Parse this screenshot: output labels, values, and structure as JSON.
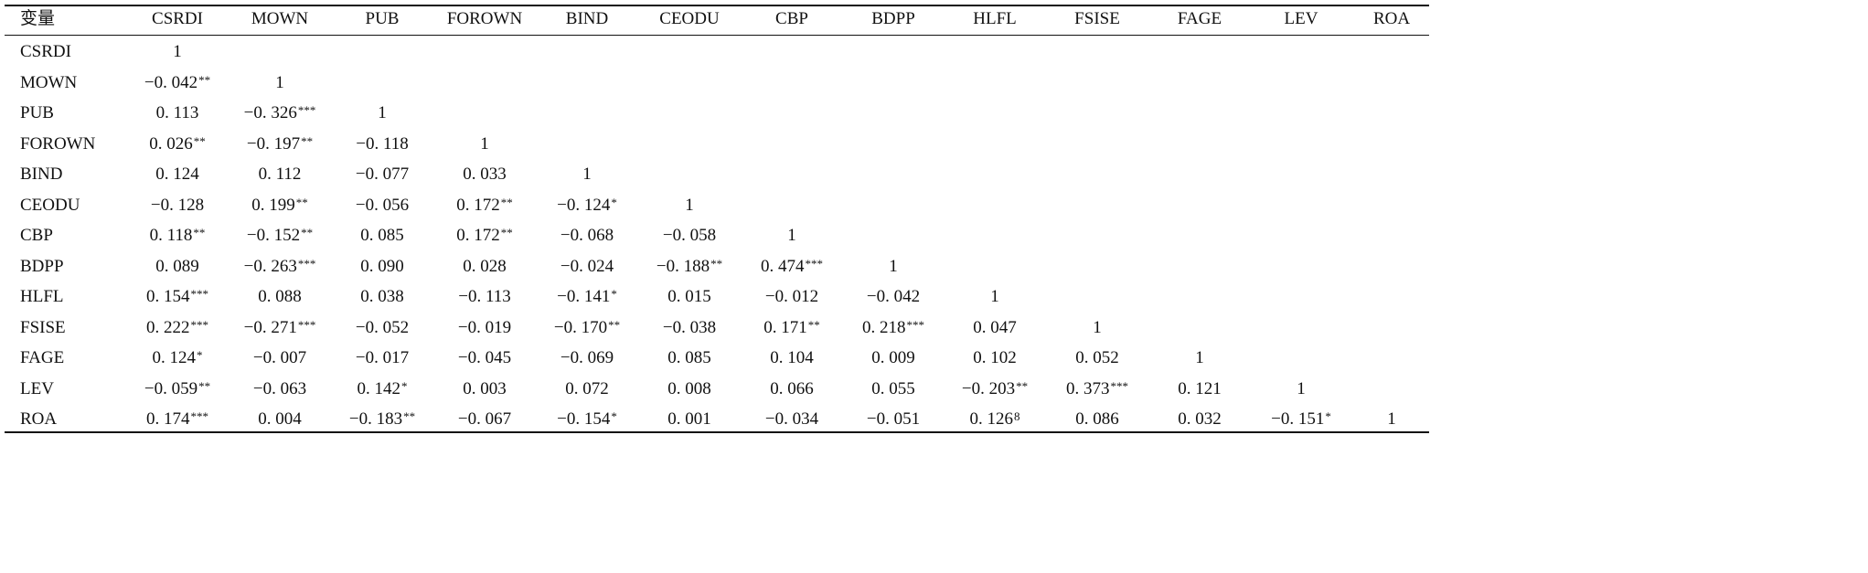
{
  "table": {
    "corner_label": "变量",
    "columns": [
      "CSRDI",
      "MOWN",
      "PUB",
      "FOROWN",
      "BIND",
      "CEODU",
      "CBP",
      "BDPP",
      "HLFL",
      "FSISE",
      "FAGE",
      "LEV",
      "ROA"
    ],
    "rows": [
      {
        "label": "CSRDI",
        "cells": [
          {
            "v": "1",
            "s": ""
          }
        ]
      },
      {
        "label": "MOWN",
        "cells": [
          {
            "v": "−0. 042",
            "s": "**"
          },
          {
            "v": "1",
            "s": ""
          }
        ]
      },
      {
        "label": "PUB",
        "cells": [
          {
            "v": "0. 113",
            "s": ""
          },
          {
            "v": "−0. 326",
            "s": "***"
          },
          {
            "v": "1",
            "s": ""
          }
        ]
      },
      {
        "label": "FOROWN",
        "cells": [
          {
            "v": "0. 026",
            "s": "**"
          },
          {
            "v": "−0. 197",
            "s": "**"
          },
          {
            "v": "−0. 118",
            "s": ""
          },
          {
            "v": "1",
            "s": ""
          }
        ]
      },
      {
        "label": "BIND",
        "cells": [
          {
            "v": "0. 124",
            "s": ""
          },
          {
            "v": "0. 112",
            "s": ""
          },
          {
            "v": "−0. 077",
            "s": ""
          },
          {
            "v": "0. 033",
            "s": ""
          },
          {
            "v": "1",
            "s": ""
          }
        ]
      },
      {
        "label": "CEODU",
        "cells": [
          {
            "v": "−0. 128",
            "s": ""
          },
          {
            "v": "0. 199",
            "s": "**"
          },
          {
            "v": "−0. 056",
            "s": ""
          },
          {
            "v": "0. 172",
            "s": "**"
          },
          {
            "v": "−0. 124",
            "s": "*"
          },
          {
            "v": "1",
            "s": ""
          }
        ]
      },
      {
        "label": "CBP",
        "cells": [
          {
            "v": "0. 118",
            "s": "**"
          },
          {
            "v": "−0. 152",
            "s": "**"
          },
          {
            "v": "0. 085",
            "s": ""
          },
          {
            "v": "0. 172",
            "s": "**"
          },
          {
            "v": "−0. 068",
            "s": ""
          },
          {
            "v": "−0. 058",
            "s": ""
          },
          {
            "v": "1",
            "s": ""
          }
        ]
      },
      {
        "label": "BDPP",
        "cells": [
          {
            "v": "0. 089",
            "s": ""
          },
          {
            "v": "−0. 263",
            "s": "***"
          },
          {
            "v": "0. 090",
            "s": ""
          },
          {
            "v": "0. 028",
            "s": ""
          },
          {
            "v": "−0. 024",
            "s": ""
          },
          {
            "v": "−0. 188",
            "s": "**"
          },
          {
            "v": "0. 474",
            "s": "***"
          },
          {
            "v": "1",
            "s": ""
          }
        ]
      },
      {
        "label": "HLFL",
        "cells": [
          {
            "v": "0. 154",
            "s": "***"
          },
          {
            "v": "0. 088",
            "s": ""
          },
          {
            "v": "0. 038",
            "s": ""
          },
          {
            "v": "−0. 113",
            "s": ""
          },
          {
            "v": "−0. 141",
            "s": "*"
          },
          {
            "v": "0. 015",
            "s": ""
          },
          {
            "v": "−0. 012",
            "s": ""
          },
          {
            "v": "−0. 042",
            "s": ""
          },
          {
            "v": "1",
            "s": ""
          }
        ]
      },
      {
        "label": "FSISE",
        "cells": [
          {
            "v": "0. 222",
            "s": "***"
          },
          {
            "v": "−0. 271",
            "s": "***"
          },
          {
            "v": "−0. 052",
            "s": ""
          },
          {
            "v": "−0. 019",
            "s": ""
          },
          {
            "v": "−0. 170",
            "s": "**"
          },
          {
            "v": "−0. 038",
            "s": ""
          },
          {
            "v": "0. 171",
            "s": "**"
          },
          {
            "v": "0. 218",
            "s": "***"
          },
          {
            "v": "0. 047",
            "s": ""
          },
          {
            "v": "1",
            "s": ""
          }
        ]
      },
      {
        "label": "FAGE",
        "cells": [
          {
            "v": "0. 124",
            "s": "*"
          },
          {
            "v": "−0. 007",
            "s": ""
          },
          {
            "v": "−0. 017",
            "s": ""
          },
          {
            "v": "−0. 045",
            "s": ""
          },
          {
            "v": "−0. 069",
            "s": ""
          },
          {
            "v": "0. 085",
            "s": ""
          },
          {
            "v": "0. 104",
            "s": ""
          },
          {
            "v": "0. 009",
            "s": ""
          },
          {
            "v": "0. 102",
            "s": ""
          },
          {
            "v": "0. 052",
            "s": ""
          },
          {
            "v": "1",
            "s": ""
          }
        ]
      },
      {
        "label": "LEV",
        "cells": [
          {
            "v": "−0. 059",
            "s": "**"
          },
          {
            "v": "−0. 063",
            "s": ""
          },
          {
            "v": "0. 142",
            "s": "*"
          },
          {
            "v": "0. 003",
            "s": ""
          },
          {
            "v": "0. 072",
            "s": ""
          },
          {
            "v": "0. 008",
            "s": ""
          },
          {
            "v": "0. 066",
            "s": ""
          },
          {
            "v": "0. 055",
            "s": ""
          },
          {
            "v": "−0. 203",
            "s": "**"
          },
          {
            "v": "0. 373",
            "s": "***"
          },
          {
            "v": "0. 121",
            "s": ""
          },
          {
            "v": "1",
            "s": ""
          }
        ]
      },
      {
        "label": "ROA",
        "cells": [
          {
            "v": "0. 174",
            "s": "***"
          },
          {
            "v": "0. 004",
            "s": ""
          },
          {
            "v": "−0. 183",
            "s": "**"
          },
          {
            "v": "−0. 067",
            "s": ""
          },
          {
            "v": "−0. 154",
            "s": "*"
          },
          {
            "v": "0. 001",
            "s": ""
          },
          {
            "v": "−0. 034",
            "s": ""
          },
          {
            "v": "−0. 051",
            "s": ""
          },
          {
            "v": "0. 126",
            "s": "8"
          },
          {
            "v": "0. 086",
            "s": ""
          },
          {
            "v": "0. 032",
            "s": ""
          },
          {
            "v": "−0. 151",
            "s": "*"
          },
          {
            "v": "1",
            "s": ""
          }
        ]
      }
    ]
  }
}
